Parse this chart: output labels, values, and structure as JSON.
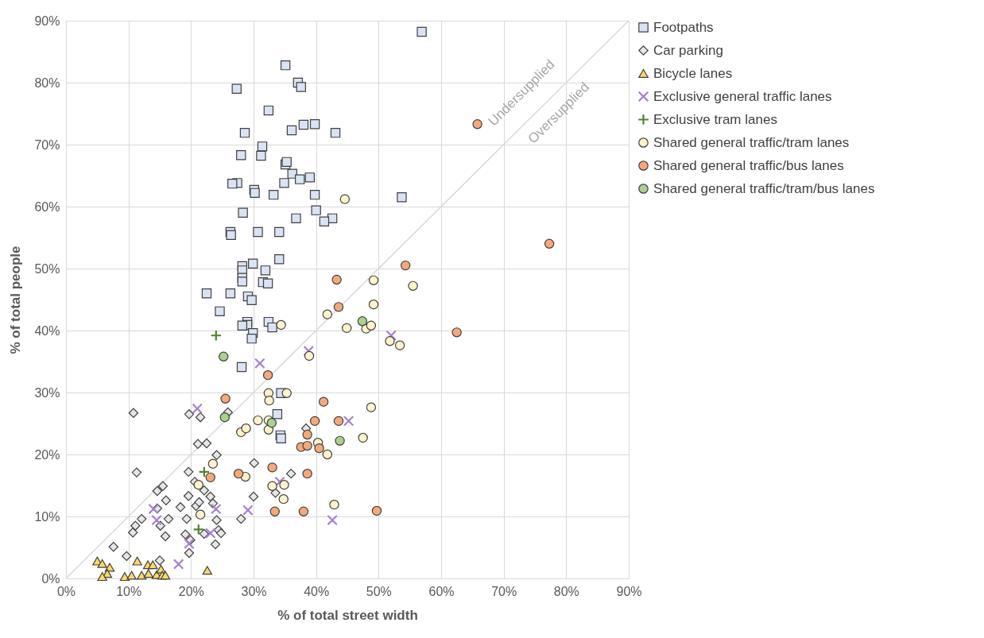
{
  "chart_data": {
    "type": "scatter",
    "xlabel": "% of total street width",
    "ylabel": "% of total people",
    "xlim": [
      0,
      90
    ],
    "ylim": [
      0,
      90
    ],
    "xticks": [
      {
        "value": 0,
        "label": "0%"
      },
      {
        "value": 10,
        "label": "10%"
      },
      {
        "value": 20,
        "label": "20%"
      },
      {
        "value": 30,
        "label": "30%"
      },
      {
        "value": 40,
        "label": "40%"
      },
      {
        "value": 50,
        "label": "50%"
      },
      {
        "value": 60,
        "label": "60%"
      },
      {
        "value": 70,
        "label": "70%"
      },
      {
        "value": 80,
        "label": "80%"
      },
      {
        "value": 90,
        "label": "90%"
      }
    ],
    "yticks": [
      {
        "value": 0,
        "label": "0%"
      },
      {
        "value": 10,
        "label": "10%"
      },
      {
        "value": 20,
        "label": "20%"
      },
      {
        "value": 30,
        "label": "30%"
      },
      {
        "value": 40,
        "label": "40%"
      },
      {
        "value": 50,
        "label": "50%"
      },
      {
        "value": 60,
        "label": "60%"
      },
      {
        "value": 70,
        "label": "70%"
      },
      {
        "value": 80,
        "label": "80%"
      },
      {
        "value": 90,
        "label": "90%"
      }
    ],
    "grid": true,
    "legend": "top right",
    "annotations": [
      "Undersupplied",
      "Oversupplied"
    ],
    "series": [
      {
        "type": "line",
        "color": "#d9d9d9",
        "x": [
          0,
          90
        ],
        "values": [
          0,
          90
        ]
      },
      {
        "name": "Footpaths",
        "color": "#dae3f3",
        "marker": "square",
        "x": [
          56.9,
          35.1,
          27.3,
          37.1,
          37.6,
          32.4,
          36.1,
          38.0,
          39.8,
          43.1,
          28.6,
          31.4,
          31.2,
          28.0,
          35.1,
          35.3,
          36.2,
          37.4,
          39.0,
          34.9,
          27.4,
          26.6,
          30.1,
          30.2,
          33.2,
          39.8,
          53.7,
          40.0,
          36.8,
          42.6,
          41.3,
          28.3,
          26.3,
          26.4,
          30.7,
          34.1,
          34.1,
          29.9,
          28.2,
          28.2,
          31.9,
          28.2,
          28.2,
          31.5,
          32.3,
          22.5,
          26.3,
          29.1,
          29.7,
          24.6,
          29.0,
          29.0,
          28.2,
          32.4,
          33.0,
          29.9,
          29.7,
          28.1,
          34.4,
          33.8,
          34.3,
          34.4
        ],
        "values": [
          88.2,
          82.8,
          79.0,
          80.0,
          79.3,
          75.5,
          72.3,
          73.2,
          73.3,
          71.9,
          71.9,
          69.7,
          68.2,
          68.3,
          66.8,
          67.2,
          65.3,
          64.4,
          64.7,
          63.8,
          63.8,
          63.7,
          62.7,
          62.2,
          61.9,
          61.9,
          61.5,
          59.4,
          58.1,
          58.1,
          57.6,
          59.0,
          55.9,
          55.4,
          55.9,
          55.9,
          51.5,
          50.8,
          50.4,
          49.7,
          49.7,
          48.5,
          47.9,
          47.8,
          47.6,
          46.0,
          46.0,
          45.5,
          44.9,
          43.1,
          41.4,
          40.9,
          40.8,
          41.4,
          40.5,
          39.6,
          38.7,
          34.1,
          29.9,
          26.5,
          23.1,
          22.6
        ]
      },
      {
        "name": "Car parking",
        "color": "#e7e6e6",
        "marker": "diamond",
        "x": [
          10.8,
          19.7,
          21.5,
          25.9,
          21.1,
          22.5,
          24.1,
          30.1,
          11.3,
          19.6,
          20.6,
          15.5,
          14.6,
          16.0,
          22.1,
          23.1,
          19.6,
          18.3,
          20.8,
          21.3,
          23.5,
          14.6,
          16.4,
          19.3,
          12.1,
          11.1,
          10.7,
          15.1,
          15.9,
          19.1,
          19.9,
          22.1,
          24.1,
          24.4,
          24.8,
          23.9,
          19.7,
          7.6,
          9.7,
          15.0,
          28.0,
          30.0,
          36.0,
          33.5,
          38.4
        ],
        "values": [
          26.7,
          26.5,
          26.0,
          26.8,
          21.7,
          21.8,
          19.9,
          18.6,
          17.1,
          17.2,
          15.6,
          14.9,
          14.1,
          12.6,
          14.2,
          13.2,
          13.3,
          11.5,
          11.7,
          12.3,
          12.1,
          11.3,
          9.6,
          9.6,
          9.6,
          8.5,
          7.4,
          8.5,
          6.8,
          7.1,
          6.2,
          7.2,
          9.4,
          7.8,
          7.3,
          5.5,
          4.1,
          5.1,
          3.6,
          2.9,
          9.6,
          13.2,
          16.9,
          13.8,
          24.2
        ]
      },
      {
        "name": "Bicycle lanes",
        "color": "#ffd966",
        "marker": "triangle",
        "x": [
          5.0,
          5.8,
          7.0,
          6.6,
          5.8,
          9.4,
          10.5,
          11.4,
          12.1,
          13.1,
          13.9,
          13.2,
          14.5,
          15.2,
          15.4,
          15.9,
          22.6
        ],
        "values": [
          2.8,
          2.4,
          1.8,
          0.8,
          0.3,
          0.3,
          0.5,
          2.8,
          0.5,
          2.2,
          2.2,
          0.8,
          0.6,
          1.5,
          0.5,
          0.5,
          1.3
        ]
      },
      {
        "name": "Exclusive general traffic lanes",
        "color": "#a47fd6",
        "marker": "x",
        "x": [
          21.0,
          31.0,
          38.8,
          52.0,
          45.2,
          34.2,
          29.1,
          42.6,
          14.0,
          14.5,
          24.0,
          23.1,
          19.7,
          18.0
        ],
        "values": [
          27.4,
          34.7,
          36.7,
          39.2,
          25.4,
          15.6,
          11.0,
          9.4,
          11.2,
          9.4,
          11.2,
          7.3,
          5.6,
          2.3
        ]
      },
      {
        "name": "Exclusive tram lanes",
        "color": "#548235",
        "marker": "cross",
        "x": [
          24.0,
          22.1,
          21.2
        ],
        "values": [
          39.2,
          17.2,
          7.9
        ]
      },
      {
        "name": "Shared general traffic/tram lanes",
        "color": "#fff2cc",
        "marker": "circle",
        "x": [
          44.6,
          49.2,
          55.5,
          41.8,
          49.2,
          34.4,
          44.9,
          48.0,
          48.8,
          51.8,
          53.4,
          38.9,
          32.4,
          35.3,
          48.8,
          30.7,
          32.4,
          28.0,
          28.8,
          32.4,
          40.3,
          41.8,
          47.5,
          32.5,
          28.7,
          33.0,
          34.9,
          34.8,
          42.9,
          23.5,
          21.2,
          21.5
        ],
        "values": [
          61.2,
          48.1,
          47.2,
          42.6,
          44.2,
          40.9,
          40.4,
          40.3,
          40.8,
          38.3,
          37.6,
          35.9,
          29.9,
          29.9,
          27.6,
          25.5,
          25.5,
          23.6,
          24.2,
          24.0,
          21.9,
          20.0,
          22.7,
          28.7,
          16.4,
          14.9,
          15.1,
          12.8,
          11.9,
          18.5,
          15.1,
          10.3
        ]
      },
      {
        "name": "Shared general traffic/bus lanes",
        "color": "#f4a97c",
        "marker": "circle",
        "x": [
          65.8,
          77.3,
          54.3,
          43.3,
          43.6,
          62.5,
          32.3,
          25.5,
          41.2,
          39.8,
          43.6,
          38.6,
          37.6,
          38.6,
          40.5,
          33.0,
          27.6,
          38.6,
          23.1,
          33.4,
          38.0,
          49.7
        ],
        "values": [
          73.3,
          54.0,
          50.5,
          48.2,
          43.8,
          39.7,
          32.8,
          29.0,
          28.5,
          25.4,
          25.4,
          23.2,
          21.2,
          21.4,
          21.0,
          17.9,
          16.9,
          16.9,
          16.3,
          10.8,
          10.8,
          10.9
        ]
      },
      {
        "name": "Shared general traffic/tram/bus lanes",
        "color": "#a9d18e",
        "marker": "circle",
        "x": [
          47.4,
          25.2,
          25.4,
          32.9,
          43.8
        ],
        "values": [
          41.5,
          35.8,
          26.0,
          25.1,
          22.2
        ]
      }
    ]
  }
}
